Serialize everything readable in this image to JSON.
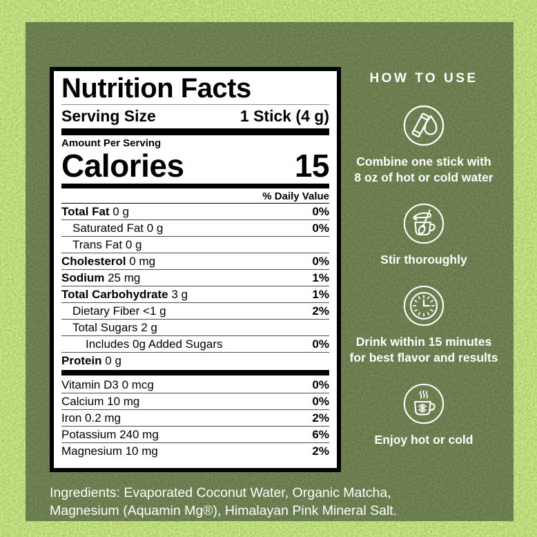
{
  "colors": {
    "bright_matcha_green": "#80b333",
    "dark_panel_green": "#263514",
    "label_background": "#ffffff",
    "label_text": "#000000",
    "panel_text": "#ffffff"
  },
  "nutrition_label": {
    "title": "Nutrition Facts",
    "serving_size_label": "Serving Size",
    "serving_size_value": "1 Stick (4 g)",
    "amount_per_serving": "Amount Per Serving",
    "calories_label": "Calories",
    "calories_value": "15",
    "daily_value_header": "% Daily Value",
    "rows": [
      {
        "name": "Total Fat",
        "amount": "0 g",
        "dv": "0%",
        "bold": true,
        "indent": 0
      },
      {
        "name": "Saturated Fat",
        "amount": "0 g",
        "dv": "0%",
        "bold": false,
        "indent": 1
      },
      {
        "name": "Trans Fat",
        "amount": "0 g",
        "dv": "",
        "bold": false,
        "indent": 1
      },
      {
        "name": "Cholesterol",
        "amount": "0 mg",
        "dv": "0%",
        "bold": true,
        "indent": 0
      },
      {
        "name": "Sodium",
        "amount": "25 mg",
        "dv": "1%",
        "bold": true,
        "indent": 0
      },
      {
        "name": "Total Carbohydrate",
        "amount": "3 g",
        "dv": "1%",
        "bold": true,
        "indent": 0
      },
      {
        "name": "Dietary Fiber",
        "amount": "<1 g",
        "dv": "2%",
        "bold": false,
        "indent": 1
      },
      {
        "name": "Total Sugars",
        "amount": "2 g",
        "dv": "",
        "bold": false,
        "indent": 1
      },
      {
        "name": "Includes 0g Added Sugars",
        "amount": "",
        "dv": "0%",
        "bold": false,
        "indent": 2
      },
      {
        "name": "Protein",
        "amount": "0 g",
        "dv": "",
        "bold": true,
        "indent": 0
      }
    ],
    "vitamin_rows": [
      {
        "name": "Vitamin D3",
        "amount": "0 mcg",
        "dv": "0%",
        "bold": false,
        "indent": 0
      },
      {
        "name": "Calcium",
        "amount": "10 mg",
        "dv": "0%",
        "bold": false,
        "indent": 0
      },
      {
        "name": "Iron",
        "amount": "0.2 mg",
        "dv": "2%",
        "bold": false,
        "indent": 0
      },
      {
        "name": "Potassium",
        "amount": "240 mg",
        "dv": "6%",
        "bold": false,
        "indent": 0
      },
      {
        "name": "Magnesium",
        "amount": "10 mg",
        "dv": "2%",
        "bold": false,
        "indent": 0
      }
    ]
  },
  "how_to_use": {
    "title": "HOW TO USE",
    "steps": [
      {
        "icon": "stick-water-icon",
        "text": "Combine one stick with\n8 oz of hot or cold water"
      },
      {
        "icon": "stir-icon",
        "text": "Stir thoroughly"
      },
      {
        "icon": "clock-icon",
        "text": "Drink within 15 minutes\nfor best flavor and results"
      },
      {
        "icon": "hot-cold-cup-icon",
        "text": "Enjoy hot or cold"
      }
    ]
  },
  "ingredients": "Ingredients: Evaporated Coconut Water,  Organic Matcha,\nMagnesium (Aquamin Mg®), Himalayan Pink Mineral Salt."
}
